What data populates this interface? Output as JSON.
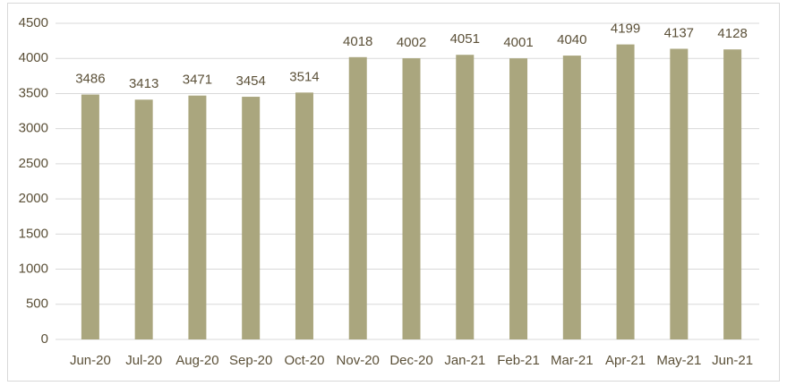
{
  "chart_data": {
    "type": "bar",
    "categories": [
      "Jun-20",
      "Jul-20",
      "Aug-20",
      "Sep-20",
      "Oct-20",
      "Nov-20",
      "Dec-20",
      "Jan-21",
      "Feb-21",
      "Mar-21",
      "Apr-21",
      "May-21",
      "Jun-21"
    ],
    "values": [
      3486,
      3413,
      3471,
      3454,
      3514,
      4018,
      4002,
      4051,
      4001,
      4040,
      4199,
      4137,
      4128
    ],
    "color": "#aaa67e",
    "ylim": [
      0,
      4500
    ],
    "yticks": [
      0,
      500,
      1000,
      1500,
      2000,
      2500,
      3000,
      3500,
      4000,
      4500
    ],
    "grid": true
  }
}
